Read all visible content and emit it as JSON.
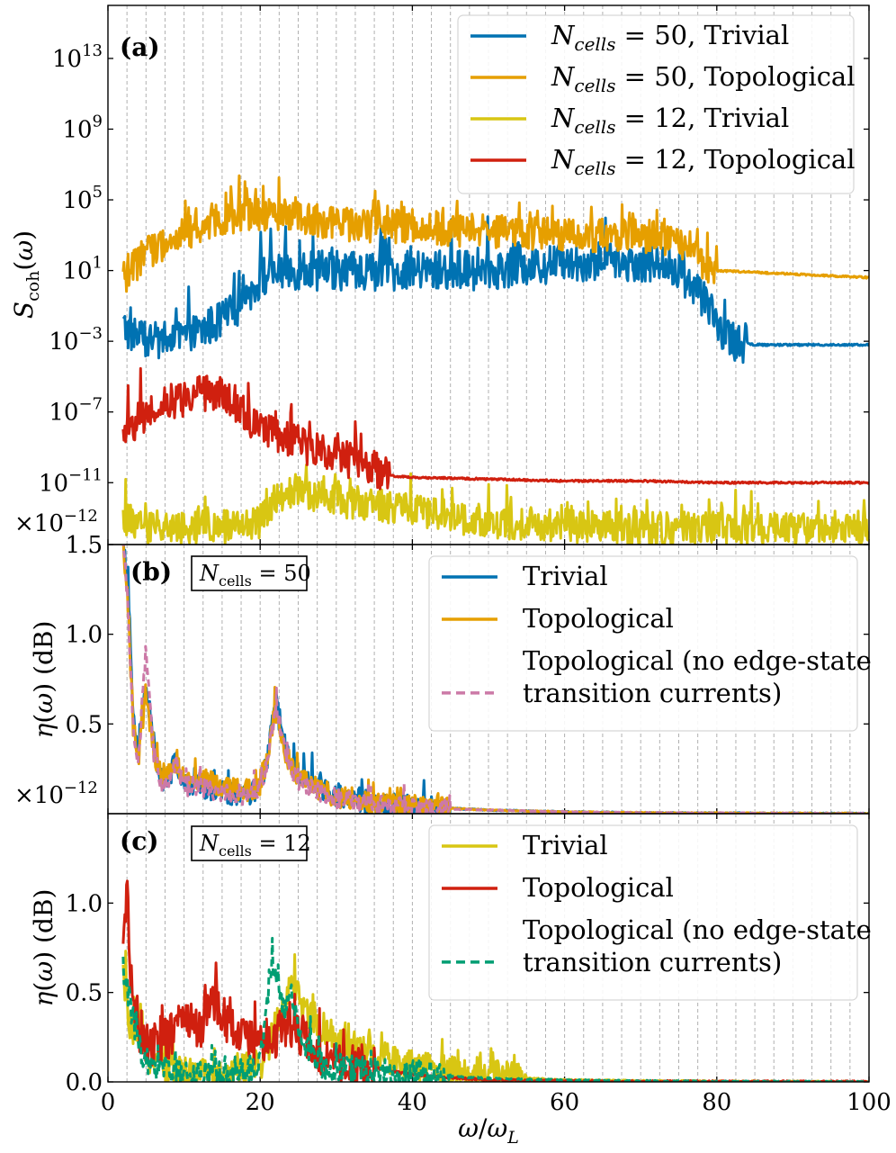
{
  "chart_data": [
    {
      "panel": "(a)",
      "type": "line",
      "ylabel": "S_coh(ω)",
      "yscale": "log",
      "ylim_log10": [
        -14.5,
        16
      ],
      "yticks": [
        {
          "exp": 13,
          "label": "10^13"
        },
        {
          "exp": 9,
          "label": "10^9"
        },
        {
          "exp": 5,
          "label": "10^5"
        },
        {
          "exp": 1,
          "label": "10^1"
        },
        {
          "exp": -3,
          "label": "10^-3"
        },
        {
          "exp": -7,
          "label": "10^-7"
        },
        {
          "exp": -11,
          "label": "10^-11"
        }
      ],
      "offset_text": "×10^-12",
      "xlim": [
        0,
        100
      ],
      "series": [
        {
          "name": "N_cells = 50, Trivial",
          "legend_pre": "N",
          "legend_sub": "cells",
          "legend_post": " = 50, Trivial",
          "color": "#0072B2",
          "dashed": false,
          "x": [
            2,
            3,
            5,
            8,
            12,
            16,
            20,
            22,
            25,
            30,
            40,
            50,
            60,
            70,
            75,
            78,
            80,
            82,
            85,
            90,
            95,
            100
          ],
          "log10y": [
            -2.2,
            -2.5,
            -3.0,
            -3.0,
            -2.5,
            -1.5,
            0.5,
            1.0,
            1.0,
            1.0,
            1.0,
            1.0,
            1.5,
            1.5,
            1.0,
            -0.5,
            -2.0,
            -3.0,
            -3.2,
            -3.2,
            -3.2,
            -3.2
          ],
          "jitter": 1.4,
          "jitter_until": 84
        },
        {
          "name": "N_cells = 50, Topological",
          "legend_pre": "N",
          "legend_sub": "cells",
          "legend_post": " = 50, Topological",
          "color": "#E69F00",
          "dashed": false,
          "x": [
            2,
            5,
            10,
            15,
            20,
            25,
            30,
            40,
            50,
            60,
            70,
            75,
            78,
            80,
            85,
            90,
            100
          ],
          "log10y": [
            0.5,
            2.0,
            3.0,
            4.0,
            4.2,
            4.0,
            3.6,
            3.5,
            3.2,
            3.0,
            3.0,
            2.6,
            1.5,
            1.0,
            0.9,
            0.8,
            0.6
          ],
          "jitter": 1.2,
          "jitter_until": 80
        },
        {
          "name": "N_cells = 12, Trivial",
          "legend_pre": "N",
          "legend_sub": "cells",
          "legend_post": " = 12, Trivial",
          "color": "#D8C613",
          "dashed": false,
          "x": [
            2,
            5,
            10,
            15,
            20,
            22,
            25,
            30,
            35,
            40,
            50,
            60,
            70,
            80,
            90,
            100
          ],
          "log10y": [
            -13.0,
            -13.5,
            -13.5,
            -13.5,
            -13.2,
            -12.0,
            -11.5,
            -12.0,
            -12.2,
            -12.6,
            -13.2,
            -13.4,
            -13.6,
            -13.6,
            -13.7,
            -13.7
          ],
          "jitter": 1.2,
          "jitter_until": 100
        },
        {
          "name": "N_cells = 12, Topological",
          "legend_pre": "N",
          "legend_sub": "cells",
          "legend_post": " = 12, Topological",
          "color": "#D0200F",
          "dashed": false,
          "x": [
            2,
            5,
            8,
            12,
            15,
            20,
            25,
            30,
            35,
            37,
            40,
            50,
            60,
            70,
            80,
            90,
            100
          ],
          "log10y": [
            -8.5,
            -7.0,
            -6.5,
            -6.0,
            -6.0,
            -8.0,
            -8.8,
            -9.5,
            -10.2,
            -10.6,
            -10.7,
            -10.8,
            -10.9,
            -10.9,
            -11.0,
            -11.0,
            -11.0
          ],
          "jitter": 1.3,
          "jitter_until": 37
        }
      ]
    },
    {
      "panel": "(b)",
      "type": "line",
      "inset_pre": "N",
      "inset_sub": "cells",
      "inset_post": " = 50",
      "ylabel": "η(ω) (dB)",
      "ylim": [
        0,
        1.5
      ],
      "yticks": [
        {
          "value": 1.5,
          "label": "1.5"
        },
        {
          "value": 1.0,
          "label": "1.0"
        },
        {
          "value": 0.5,
          "label": "0.5"
        }
      ],
      "offset_text": "×10^-12",
      "xlim": [
        0,
        100
      ],
      "series": [
        {
          "name": "Trivial",
          "color": "#0072B2",
          "dashed": false,
          "x": [
            2,
            2.6,
            3.3,
            4,
            5,
            6,
            7,
            8,
            9,
            10,
            12,
            15,
            18,
            20,
            21,
            22,
            23,
            24,
            25,
            28,
            30,
            35,
            40,
            50,
            60,
            70,
            80,
            90,
            100
          ],
          "y": [
            1.5,
            1.3,
            0.55,
            0.3,
            0.72,
            0.4,
            0.15,
            0.2,
            0.3,
            0.15,
            0.15,
            0.12,
            0.1,
            0.15,
            0.3,
            0.65,
            0.4,
            0.3,
            0.22,
            0.15,
            0.1,
            0.06,
            0.04,
            0.02,
            0.01,
            0.005,
            0.003,
            0.002,
            0.001
          ],
          "jitter": 0.08,
          "jitter_until": 45
        },
        {
          "name": "Topological",
          "color": "#E69F00",
          "dashed": false,
          "x": [
            2,
            2.6,
            3.3,
            4,
            5,
            6,
            7,
            8,
            9,
            10,
            12,
            15,
            18,
            20,
            21,
            22,
            23,
            24,
            25,
            28,
            30,
            35,
            40,
            50,
            60,
            70,
            80,
            90,
            100
          ],
          "y": [
            1.5,
            1.2,
            0.5,
            0.3,
            0.68,
            0.35,
            0.2,
            0.25,
            0.3,
            0.18,
            0.2,
            0.15,
            0.12,
            0.16,
            0.3,
            0.58,
            0.38,
            0.28,
            0.2,
            0.13,
            0.1,
            0.06,
            0.04,
            0.02,
            0.01,
            0.005,
            0.003,
            0.002,
            0.001
          ],
          "jitter": 0.08,
          "jitter_until": 45
        },
        {
          "name": "Topological (no edge-state transition currents)",
          "line1": "Topological (no edge-state",
          "line2": "transition currents)",
          "color": "#CC79A7",
          "dashed": true,
          "x": [
            2,
            2.6,
            3.3,
            4,
            5,
            6,
            7,
            8,
            9,
            10,
            12,
            15,
            18,
            20,
            21,
            22,
            23,
            24,
            25,
            28,
            30,
            35,
            40,
            50,
            60,
            70,
            80,
            90,
            100
          ],
          "y": [
            1.5,
            1.2,
            0.5,
            0.3,
            0.9,
            0.35,
            0.15,
            0.2,
            0.3,
            0.15,
            0.15,
            0.12,
            0.1,
            0.15,
            0.3,
            0.6,
            0.38,
            0.25,
            0.18,
            0.12,
            0.08,
            0.05,
            0.03,
            0.02,
            0.01,
            0.005,
            0.003,
            0.002,
            0.001
          ],
          "jitter": 0.07,
          "jitter_until": 45
        }
      ]
    },
    {
      "panel": "(c)",
      "type": "line",
      "inset_pre": "N",
      "inset_sub": "cells",
      "inset_post": " = 12",
      "ylabel": "η(ω) (dB)",
      "ylim": [
        0,
        1.5
      ],
      "yticks": [
        {
          "value": 1.0,
          "label": "1.0"
        },
        {
          "value": 0.5,
          "label": "0.5"
        },
        {
          "value": 0.0,
          "label": "0.0"
        }
      ],
      "xlabel": "ω/ω_L",
      "xlim": [
        0,
        100
      ],
      "xticks": [
        0,
        20,
        40,
        60,
        80,
        100
      ],
      "series": [
        {
          "name": "Trivial",
          "color": "#D8C613",
          "dashed": false,
          "x": [
            2,
            3,
            5,
            8,
            10,
            15,
            20,
            22,
            24,
            26,
            28,
            30,
            32,
            35,
            40,
            45,
            50,
            60,
            70,
            80,
            100
          ],
          "y": [
            0.6,
            0.3,
            0.15,
            0.08,
            0.05,
            0.04,
            0.1,
            0.3,
            0.55,
            0.4,
            0.3,
            0.25,
            0.2,
            0.15,
            0.08,
            0.05,
            0.03,
            0.01,
            0.005,
            0.002,
            0.0
          ],
          "jitter": 0.12,
          "jitter_until": 55
        },
        {
          "name": "Topological",
          "color": "#D0200F",
          "dashed": false,
          "x": [
            2,
            2.5,
            3,
            4,
            5,
            8,
            10,
            12,
            14,
            16,
            20,
            22,
            24,
            26,
            28,
            30,
            35,
            40,
            50,
            60,
            70,
            80,
            100
          ],
          "y": [
            0.7,
            1.1,
            0.6,
            0.3,
            0.2,
            0.25,
            0.35,
            0.3,
            0.45,
            0.3,
            0.2,
            0.25,
            0.3,
            0.25,
            0.15,
            0.1,
            0.08,
            0.04,
            0.01,
            0.005,
            0.002,
            0.001,
            0.0
          ],
          "jitter": 0.15,
          "jitter_until": 35
        },
        {
          "name": "Topological (no edge-state transition currents)",
          "line1": "Topological (no edge-state",
          "line2": "transition currents)",
          "color": "#009E73",
          "dashed": true,
          "x": [
            2,
            3,
            4,
            5,
            8,
            10,
            15,
            20,
            21.5,
            23,
            24,
            25,
            26,
            28,
            30,
            35,
            40,
            50,
            60,
            70,
            80,
            100
          ],
          "y": [
            0.65,
            0.4,
            0.2,
            0.12,
            0.06,
            0.04,
            0.04,
            0.1,
            0.7,
            0.4,
            0.5,
            0.3,
            0.2,
            0.1,
            0.08,
            0.05,
            0.04,
            0.02,
            0.01,
            0.005,
            0.002,
            0.0
          ],
          "jitter": 0.1,
          "jitter_until": 45
        }
      ]
    }
  ]
}
